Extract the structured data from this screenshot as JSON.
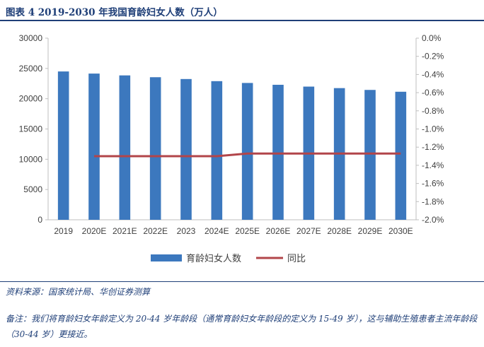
{
  "title": "图表 4   2019-2030 年我国育龄妇女人数（万人）",
  "source": "资料来源：国家统计局、华创证券测算",
  "note": "备注：我们将育龄妇女年龄定义为 20-44 岁年龄段（通常育龄妇女年龄段的定义为 15-49 岁），这与辅助生殖患者主流年龄段（30-44 岁）更接近。",
  "colors": {
    "bar": "#3c78be",
    "line": "#b2454a",
    "title": "#1f3f78"
  },
  "chart_data": {
    "type": "bar",
    "categories": [
      "2019",
      "2020E",
      "2021E",
      "2022E",
      "2023",
      "2024E",
      "2025E",
      "2026E",
      "2027E",
      "2028E",
      "2029E",
      "2030E"
    ],
    "series": [
      {
        "name": "育龄妇女人数",
        "type": "bar",
        "axis": "left",
        "values": [
          24500,
          24150,
          23850,
          23550,
          23250,
          22900,
          22600,
          22300,
          22000,
          21750,
          21450,
          21150
        ]
      },
      {
        "name": "同比",
        "type": "line",
        "axis": "right",
        "values": [
          null,
          -1.3,
          -1.3,
          -1.3,
          -1.3,
          -1.3,
          -1.27,
          -1.27,
          -1.27,
          -1.27,
          -1.27,
          -1.27
        ]
      }
    ],
    "y_left": {
      "min": 0,
      "max": 30000,
      "ticks": [
        "0",
        "5000",
        "10000",
        "15000",
        "20000",
        "25000",
        "30000"
      ]
    },
    "y_right": {
      "min": -2.0,
      "max": 0.0,
      "ticks": [
        "0.0%",
        "-0.2%",
        "-0.4%",
        "-0.6%",
        "-0.8%",
        "-1.0%",
        "-1.2%",
        "-1.4%",
        "-1.6%",
        "-1.8%",
        "-2.0%"
      ]
    },
    "grid": false,
    "legend_position": "bottom"
  }
}
